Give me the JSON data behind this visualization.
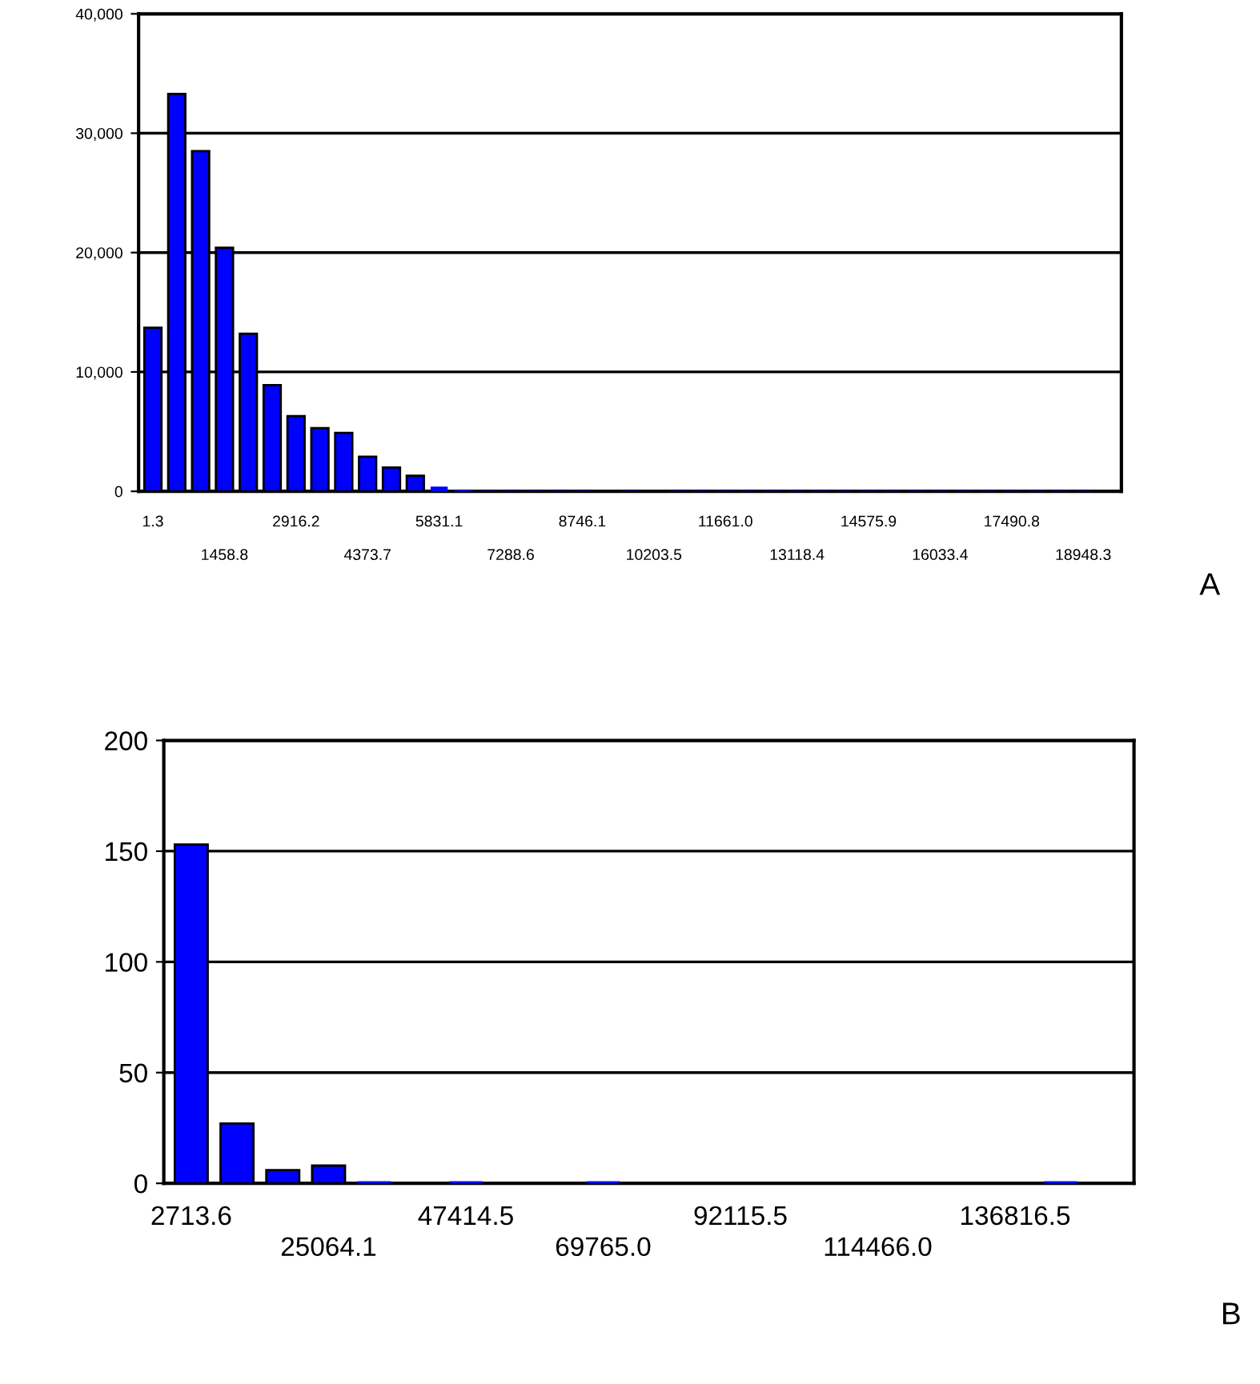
{
  "chart_data": [
    {
      "type": "bar",
      "categories": [
        "1.3",
        null,
        null,
        "1458.8",
        null,
        null,
        "2916.2",
        null,
        null,
        "4373.7",
        null,
        null,
        "5831.1",
        null,
        null,
        "7288.6",
        null,
        null,
        "8746.1",
        null,
        null,
        "10203.5",
        null,
        null,
        "11661.0",
        null,
        null,
        "13118.4",
        null,
        null,
        "14575.9",
        null,
        null,
        "16033.4",
        null,
        null,
        "17490.8",
        null,
        null,
        "18948.3",
        null
      ],
      "values": [
        13700,
        33300,
        28500,
        20400,
        13200,
        8900,
        6300,
        5300,
        4900,
        2900,
        2000,
        1300,
        400,
        100,
        50,
        50,
        50,
        50,
        50,
        0,
        50,
        0,
        50,
        50,
        50,
        50,
        50,
        50,
        50,
        50,
        50,
        50,
        50,
        50,
        50,
        50,
        50,
        50,
        50,
        50,
        0
      ],
      "color": "#0000ff",
      "ylim": [
        0,
        40000
      ],
      "yticks": [
        0,
        {
          "value": 10000,
          "label": "10,000"
        },
        {
          "value": 20000,
          "label": "20,000"
        },
        {
          "value": 30000,
          "label": "30,000"
        },
        {
          "value": 40000,
          "label": "40,000"
        }
      ],
      "grid": "y",
      "annotations": [
        "A"
      ]
    },
    {
      "type": "bar",
      "categories": [
        "2713.6",
        null,
        null,
        "25064.1",
        null,
        null,
        "47414.5",
        null,
        null,
        "69765.0",
        null,
        null,
        "92115.5",
        null,
        null,
        "114466.0",
        null,
        null,
        "136816.5",
        null
      ],
      "values": [
        153,
        27,
        6,
        8,
        1,
        0,
        1,
        0,
        0,
        1,
        0,
        0,
        0,
        0,
        0,
        0,
        0,
        0,
        0,
        1
      ],
      "color": "#0000ff",
      "ylim": [
        0,
        200
      ],
      "yticks": [
        0,
        50,
        100,
        150,
        200
      ],
      "grid": "y",
      "annotations": [
        "B"
      ]
    }
  ]
}
